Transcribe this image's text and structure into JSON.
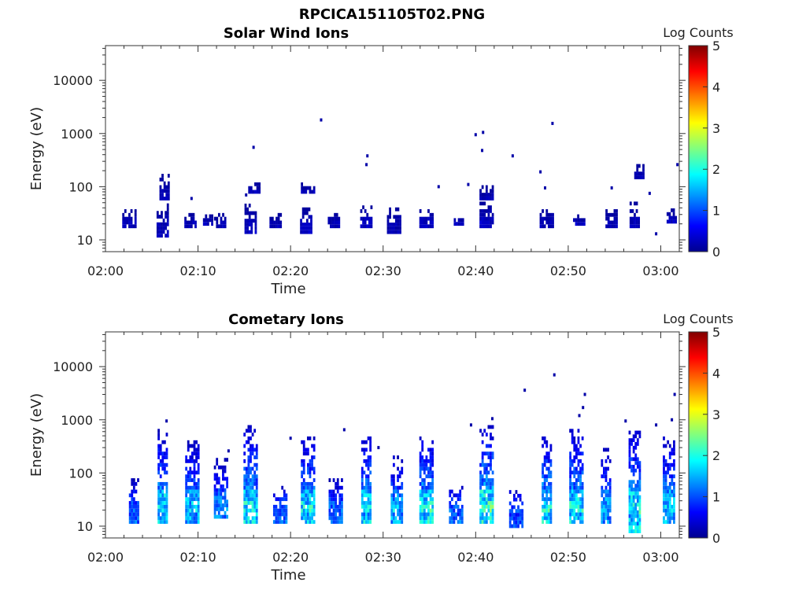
{
  "figure_title": "RPCICA151105T02.PNG",
  "colors": {
    "background": "#ffffff",
    "axis": "#333333"
  },
  "colormap": "jet",
  "chart_data": [
    {
      "type": "heatmap",
      "title": "Solar Wind Ions",
      "xlabel": "Time",
      "ylabel": "Energy (eV)",
      "x_ticks": [
        "02:00",
        "02:10",
        "02:20",
        "02:30",
        "02:40",
        "02:50",
        "03:00"
      ],
      "x_range_minutes": [
        0,
        62
      ],
      "y_scale": "log",
      "y_range": [
        6,
        45000
      ],
      "y_ticks": [
        10,
        100,
        1000,
        10000
      ],
      "y_tick_labels": [
        "10",
        "100",
        "1000",
        "10000"
      ],
      "colorbar": {
        "label": "Log Counts",
        "ticks": [
          "0",
          "1",
          "2",
          "3",
          "4",
          "5"
        ],
        "range": [
          0,
          5
        ]
      },
      "bursts": [
        {
          "t": 2.7,
          "e_lo": 18,
          "e_hi": 40,
          "v": 0.3
        },
        {
          "t": 6.3,
          "e_lo": 12,
          "e_hi": 45,
          "v": 0.35
        },
        {
          "t": 6.5,
          "e_lo": 60,
          "e_hi": 180,
          "v": 0.3
        },
        {
          "t": 9.3,
          "e_lo": 18,
          "e_hi": 32,
          "v": 0.3
        },
        {
          "t": 11.2,
          "e_lo": 20,
          "e_hi": 28,
          "v": 0.25
        },
        {
          "t": 12.5,
          "e_lo": 18,
          "e_hi": 30,
          "v": 0.3
        },
        {
          "t": 15.8,
          "e_lo": 14,
          "e_hi": 45,
          "v": 0.35
        },
        {
          "t": 16.2,
          "e_lo": 80,
          "e_hi": 120,
          "v": 0.3
        },
        {
          "t": 18.5,
          "e_lo": 18,
          "e_hi": 30,
          "v": 0.3
        },
        {
          "t": 21.8,
          "e_lo": 14,
          "e_hi": 40,
          "v": 0.35
        },
        {
          "t": 22.0,
          "e_lo": 80,
          "e_hi": 120,
          "v": 0.3
        },
        {
          "t": 24.8,
          "e_lo": 18,
          "e_hi": 32,
          "v": 0.3
        },
        {
          "t": 28.3,
          "e_lo": 18,
          "e_hi": 45,
          "v": 0.35
        },
        {
          "t": 31.3,
          "e_lo": 14,
          "e_hi": 40,
          "v": 0.3
        },
        {
          "t": 34.8,
          "e_lo": 18,
          "e_hi": 40,
          "v": 0.35
        },
        {
          "t": 38.3,
          "e_lo": 20,
          "e_hi": 30,
          "v": 0.25
        },
        {
          "t": 41.3,
          "e_lo": 18,
          "e_hi": 50,
          "v": 0.35
        },
        {
          "t": 41.3,
          "e_lo": 60,
          "e_hi": 100,
          "v": 0.3
        },
        {
          "t": 47.8,
          "e_lo": 18,
          "e_hi": 40,
          "v": 0.3
        },
        {
          "t": 51.3,
          "e_lo": 20,
          "e_hi": 30,
          "v": 0.3
        },
        {
          "t": 54.8,
          "e_lo": 18,
          "e_hi": 35,
          "v": 0.3
        },
        {
          "t": 57.3,
          "e_lo": 18,
          "e_hi": 50,
          "v": 0.3
        },
        {
          "t": 57.8,
          "e_lo": 150,
          "e_hi": 280,
          "v": 0.3
        },
        {
          "t": 61.3,
          "e_lo": 22,
          "e_hi": 40,
          "v": 0.3
        }
      ],
      "isolated_points": [
        {
          "t": 23.3,
          "e": 1800
        },
        {
          "t": 16.0,
          "e": 550
        },
        {
          "t": 28.3,
          "e": 380
        },
        {
          "t": 28.2,
          "e": 260
        },
        {
          "t": 40.0,
          "e": 950
        },
        {
          "t": 40.8,
          "e": 1050
        },
        {
          "t": 40.7,
          "e": 480
        },
        {
          "t": 44.0,
          "e": 380
        },
        {
          "t": 47.0,
          "e": 190
        },
        {
          "t": 48.3,
          "e": 1550
        },
        {
          "t": 39.2,
          "e": 110
        },
        {
          "t": 36.0,
          "e": 100
        },
        {
          "t": 15.2,
          "e": 70
        },
        {
          "t": 9.3,
          "e": 60
        },
        {
          "t": 47.5,
          "e": 95
        },
        {
          "t": 54.7,
          "e": 95
        },
        {
          "t": 58.8,
          "e": 75
        },
        {
          "t": 59.5,
          "e": 13
        },
        {
          "t": 61.8,
          "e": 260
        }
      ]
    },
    {
      "type": "heatmap",
      "title": "Cometary Ions",
      "xlabel": "Time",
      "ylabel": "Energy (eV)",
      "x_ticks": [
        "02:00",
        "02:10",
        "02:20",
        "02:30",
        "02:40",
        "02:50",
        "03:00"
      ],
      "x_range_minutes": [
        0,
        62
      ],
      "y_scale": "log",
      "y_range": [
        6,
        45000
      ],
      "y_ticks": [
        10,
        100,
        1000,
        10000
      ],
      "y_tick_labels": [
        "10",
        "100",
        "1000",
        "10000"
      ],
      "colorbar": {
        "label": "Log Counts",
        "ticks": [
          "0",
          "1",
          "2",
          "3",
          "4",
          "5"
        ],
        "range": [
          0,
          5
        ]
      },
      "bursts": [
        {
          "t": 3.2,
          "e_lo": 12,
          "e_hi": 80,
          "v": 1.2
        },
        {
          "t": 6.3,
          "e_lo": 12,
          "e_hi": 650,
          "v": 1.8
        },
        {
          "t": 9.5,
          "e_lo": 12,
          "e_hi": 420,
          "v": 1.6
        },
        {
          "t": 12.6,
          "e_lo": 15,
          "e_hi": 180,
          "v": 1.3
        },
        {
          "t": 15.8,
          "e_lo": 12,
          "e_hi": 750,
          "v": 1.8
        },
        {
          "t": 19.0,
          "e_lo": 12,
          "e_hi": 60,
          "v": 1.3
        },
        {
          "t": 22.0,
          "e_lo": 12,
          "e_hi": 520,
          "v": 1.8
        },
        {
          "t": 25.0,
          "e_lo": 12,
          "e_hi": 80,
          "v": 1.3
        },
        {
          "t": 28.3,
          "e_lo": 12,
          "e_hi": 520,
          "v": 1.8
        },
        {
          "t": 31.6,
          "e_lo": 12,
          "e_hi": 200,
          "v": 1.6
        },
        {
          "t": 34.8,
          "e_lo": 12,
          "e_hi": 520,
          "v": 1.9
        },
        {
          "t": 38.0,
          "e_lo": 12,
          "e_hi": 60,
          "v": 1.3
        },
        {
          "t": 41.3,
          "e_lo": 12,
          "e_hi": 750,
          "v": 2.0
        },
        {
          "t": 44.5,
          "e_lo": 10,
          "e_hi": 50,
          "v": 1.2
        },
        {
          "t": 47.8,
          "e_lo": 12,
          "e_hi": 520,
          "v": 1.9
        },
        {
          "t": 51.0,
          "e_lo": 12,
          "e_hi": 650,
          "v": 1.8
        },
        {
          "t": 54.2,
          "e_lo": 12,
          "e_hi": 300,
          "v": 1.5
        },
        {
          "t": 57.3,
          "e_lo": 8,
          "e_hi": 650,
          "v": 1.9
        },
        {
          "t": 61.0,
          "e_lo": 12,
          "e_hi": 520,
          "v": 1.6
        }
      ],
      "isolated_points": [
        {
          "t": 45.3,
          "e": 3600
        },
        {
          "t": 48.5,
          "e": 7000
        },
        {
          "t": 51.8,
          "e": 3000
        },
        {
          "t": 51.6,
          "e": 1700
        },
        {
          "t": 51.2,
          "e": 1200
        },
        {
          "t": 61.5,
          "e": 3000
        },
        {
          "t": 61.2,
          "e": 1000
        },
        {
          "t": 6.6,
          "e": 950
        },
        {
          "t": 41.8,
          "e": 1050
        },
        {
          "t": 39.5,
          "e": 800
        },
        {
          "t": 20.0,
          "e": 450
        },
        {
          "t": 25.8,
          "e": 650
        },
        {
          "t": 13.3,
          "e": 260
        },
        {
          "t": 29.5,
          "e": 300
        },
        {
          "t": 56.2,
          "e": 950
        },
        {
          "t": 59.5,
          "e": 800
        }
      ]
    }
  ]
}
